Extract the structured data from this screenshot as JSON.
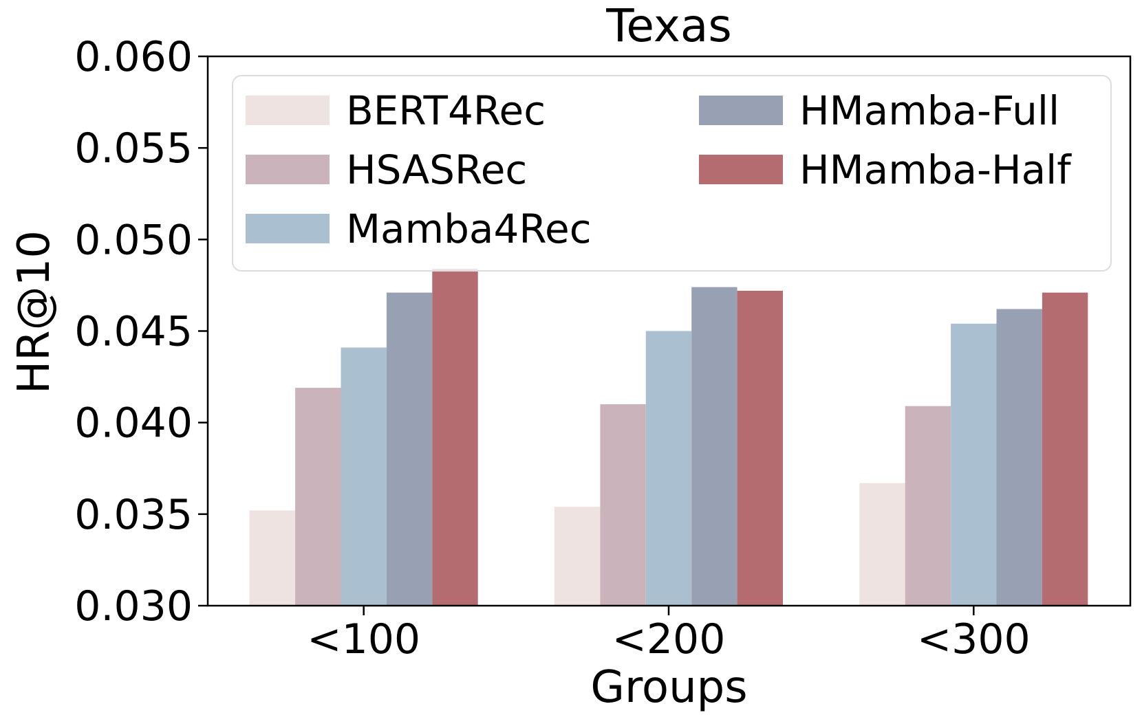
{
  "title": "Texas",
  "axes": {
    "xlabel": "Groups",
    "ylabel": "HR@10",
    "yticks": [
      "0.060",
      "0.055",
      "0.050",
      "0.045",
      "0.040",
      "0.035",
      "0.030"
    ],
    "xticks": [
      "<100",
      "<200",
      "<300"
    ]
  },
  "chart_data": {
    "type": "bar",
    "title": "Texas",
    "xlabel": "Groups",
    "ylabel": "HR@10",
    "ylim": [
      0.03,
      0.06
    ],
    "ytick_step": 0.005,
    "grid": false,
    "categories": [
      "<100",
      "<200",
      "<300"
    ],
    "series": [
      {
        "name": "BERT4Rec",
        "color": "#EEE3E0",
        "values": [
          0.0352,
          0.0354,
          0.0367
        ]
      },
      {
        "name": "HSASRec",
        "color": "#CBB3BB",
        "values": [
          0.0419,
          0.041,
          0.0409
        ]
      },
      {
        "name": "Mamba4Rec",
        "color": "#AABFCF",
        "values": [
          0.0441,
          0.045,
          0.0454
        ]
      },
      {
        "name": "HMamba-Full",
        "color": "#98A1B3",
        "values": [
          0.0471,
          0.0474,
          0.0462
        ]
      },
      {
        "name": "HMamba-Half",
        "color": "#B46C70",
        "values": [
          0.0484,
          0.0472,
          0.0471
        ]
      }
    ],
    "legend": {
      "position": "upper-left-inside",
      "columns": [
        [
          0,
          1,
          2
        ],
        [
          3,
          4
        ]
      ]
    }
  }
}
